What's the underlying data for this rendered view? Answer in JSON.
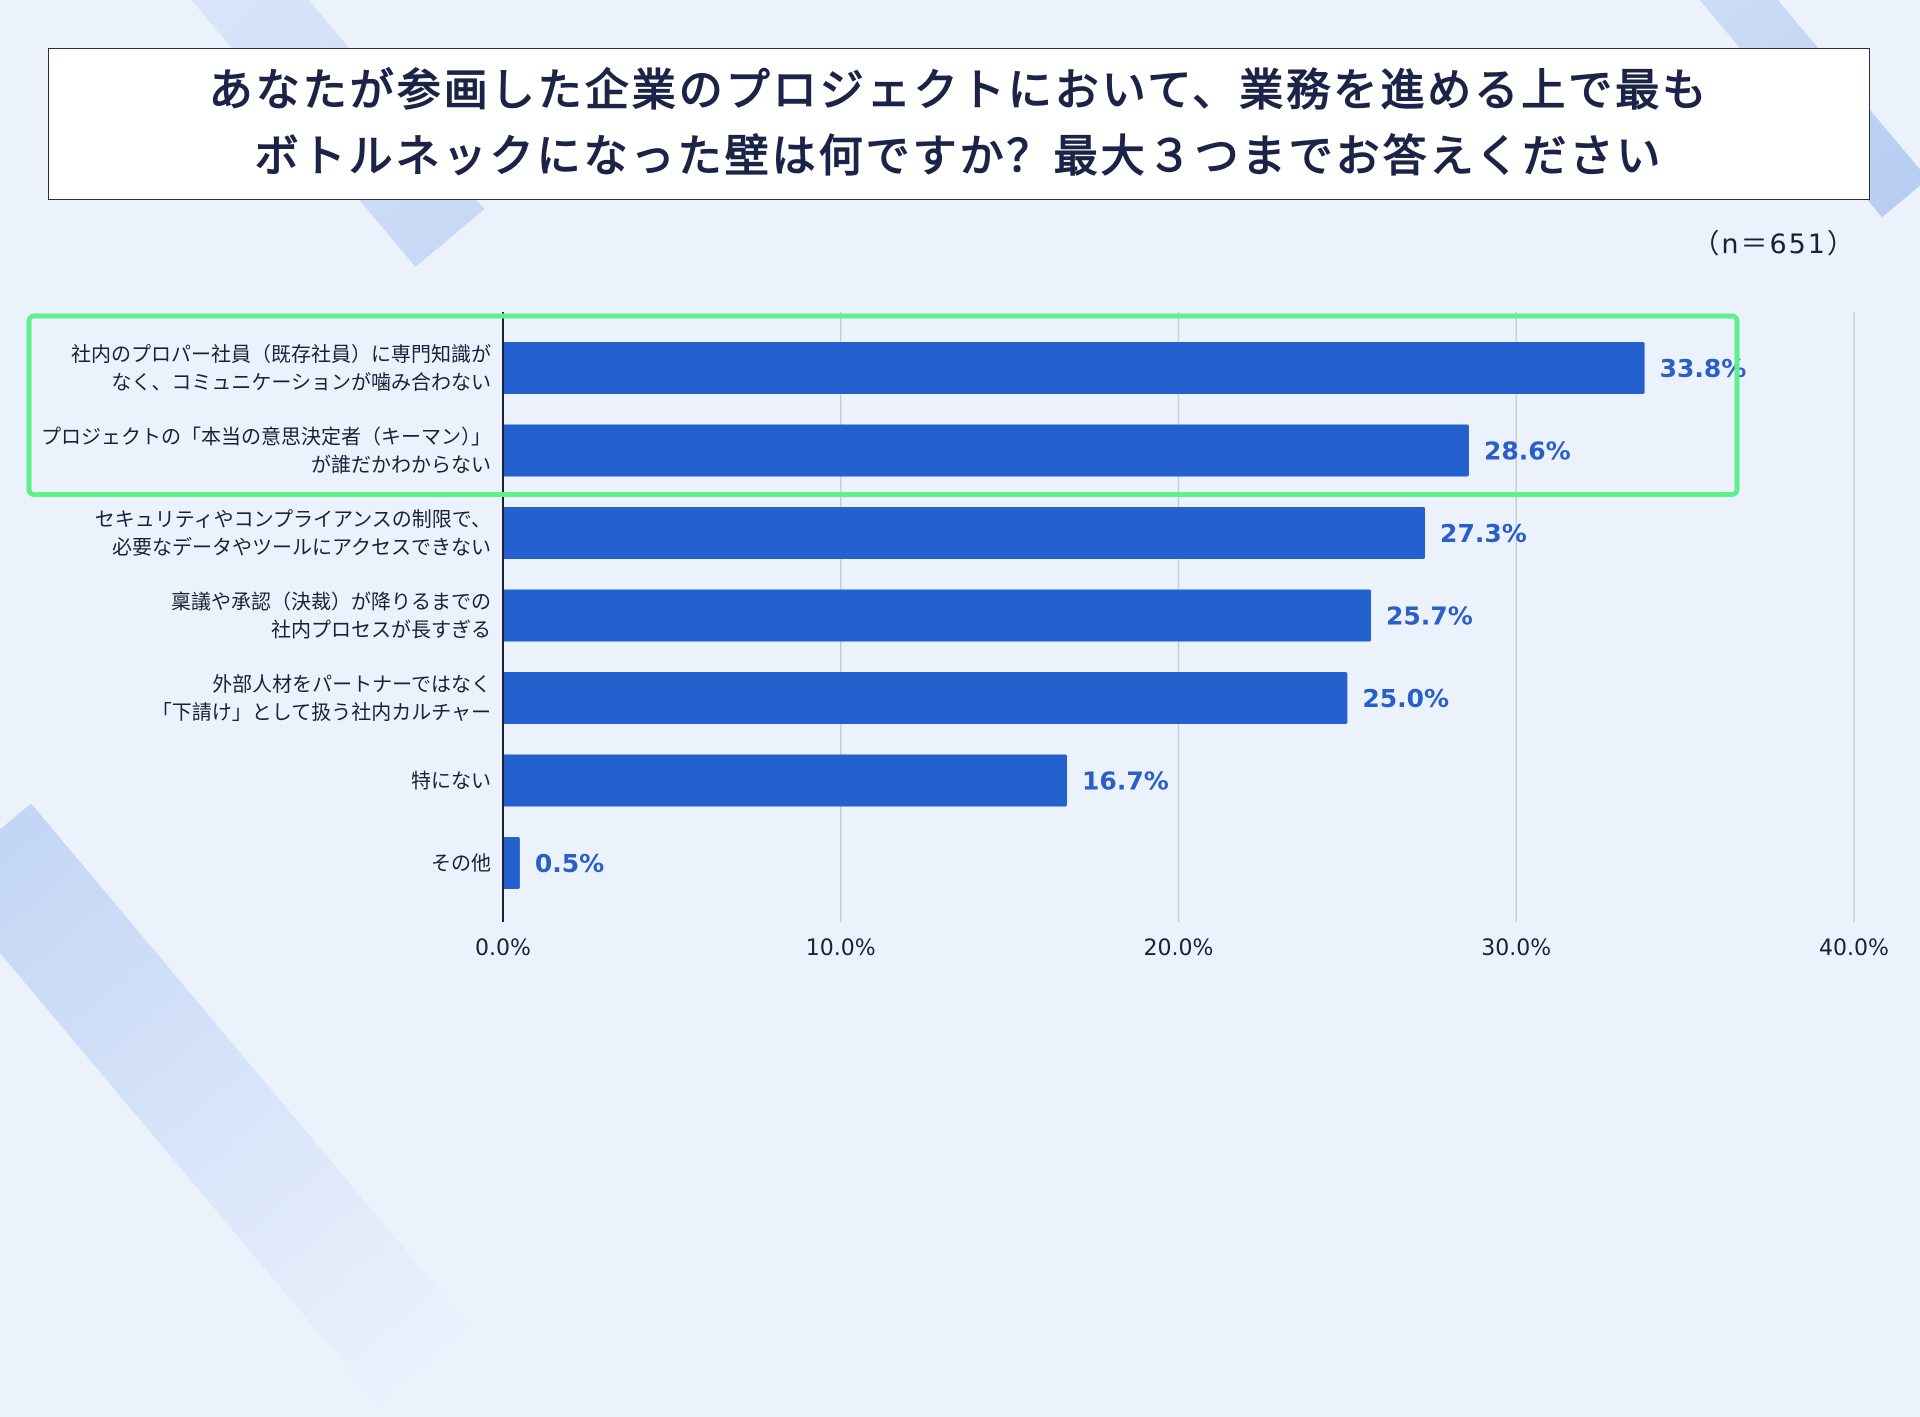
{
  "title": {
    "line1": "あなたが参画した企業のプロジェクトにおいて、業務を進める上で最も",
    "line2": "ボトルネックになった壁は何ですか？最大３つまでお答えください"
  },
  "sample_size": "（n＝651）",
  "colors": {
    "bar": "#2461cf",
    "highlight": "#5ef08a",
    "value_text": "#2a5fc9",
    "grid": "#c9cdd6"
  },
  "chart_data": {
    "type": "bar",
    "orientation": "horizontal",
    "categories": [
      [
        "社内のプロパー社員（既存社員）に専門知識が",
        "なく、コミュニケーションが噛み合わない"
      ],
      [
        "プロジェクトの「本当の意思決定者（キーマン）」",
        "が誰だかわからない"
      ],
      [
        "セキュリティやコンプライアンスの制限で、",
        "必要なデータやツールにアクセスできない"
      ],
      [
        "稟議や承認（決裁）が降りるまでの",
        "社内プロセスが長すぎる"
      ],
      [
        "外部人材をパートナーではなく",
        "「下請け」として扱う社内カルチャー"
      ],
      [
        "特にない"
      ],
      [
        "その他"
      ]
    ],
    "values": [
      33.8,
      28.6,
      27.3,
      25.7,
      25.0,
      16.7,
      0.5
    ],
    "value_labels": [
      "33.8%",
      "28.6%",
      "27.3%",
      "25.7%",
      "25.0%",
      "16.7%",
      "0.5%"
    ],
    "xlim": [
      0,
      40
    ],
    "ticks": [
      0,
      10,
      20,
      30,
      40
    ],
    "tick_labels": [
      "0.0%",
      "10.0%",
      "20.0%",
      "30.0%",
      "40.0%"
    ],
    "grid": true,
    "highlighted_categories": [
      0,
      1
    ]
  }
}
